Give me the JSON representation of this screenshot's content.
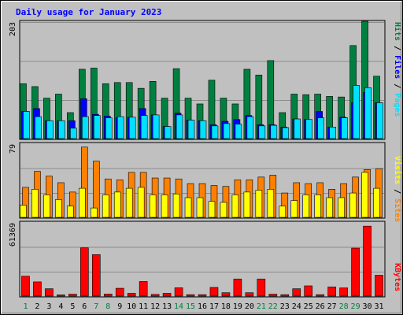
{
  "chart_data": [
    {
      "type": "bar",
      "title": "Daily usage for January 2023",
      "categories": [
        "1",
        "2",
        "3",
        "4",
        "5",
        "6",
        "7",
        "8",
        "9",
        "10",
        "11",
        "12",
        "13",
        "14",
        "15",
        "16",
        "17",
        "18",
        "19",
        "20",
        "21",
        "22",
        "23",
        "24",
        "25",
        "26",
        "27",
        "28",
        "29",
        "30",
        "31"
      ],
      "weekend_days": [
        "1",
        "7",
        "8",
        "14",
        "15",
        "21",
        "22",
        "28",
        "29"
      ],
      "ymax_label": "203",
      "ylim": [
        0,
        203
      ],
      "series": [
        {
          "name": "Hits",
          "color": "#008040",
          "values": [
            95,
            90,
            70,
            77,
            45,
            120,
            122,
            95,
            97,
            97,
            87,
            99,
            70,
            121,
            70,
            60,
            101,
            70,
            60,
            120,
            110,
            135,
            45,
            77,
            76,
            77,
            73,
            72,
            161,
            203,
            108
          ]
        },
        {
          "name": "Files",
          "color": "#0000ff",
          "values": [
            47,
            52,
            31,
            31,
            31,
            69,
            42,
            39,
            36,
            37,
            52,
            41,
            21,
            44,
            32,
            31,
            24,
            30,
            33,
            40,
            24,
            24,
            20,
            34,
            33,
            47,
            20,
            37,
            62,
            80,
            62
          ]
        },
        {
          "name": "Pages",
          "color": "#00e0ff",
          "values": [
            47,
            38,
            31,
            31,
            18,
            38,
            40,
            36,
            38,
            37,
            40,
            41,
            21,
            41,
            32,
            31,
            22,
            26,
            25,
            38,
            22,
            23,
            19,
            34,
            33,
            36,
            20,
            36,
            92,
            88,
            62
          ]
        }
      ]
    },
    {
      "type": "bar",
      "ymax_label": "79",
      "ylim": [
        0,
        79
      ],
      "series": [
        {
          "name": "Visits",
          "color": "#ffff00",
          "values": [
            13,
            30,
            24,
            19,
            12,
            31,
            10,
            24,
            27,
            31,
            32,
            24,
            24,
            25,
            21,
            21,
            17,
            16,
            24,
            27,
            29,
            30,
            12,
            18,
            24,
            24,
            21,
            21,
            26,
            48,
            31
          ]
        },
        {
          "name": "Sites",
          "color": "#ff8000",
          "values": [
            32,
            49,
            44,
            37,
            27,
            75,
            60,
            41,
            40,
            48,
            48,
            42,
            42,
            41,
            36,
            36,
            34,
            33,
            40,
            40,
            43,
            45,
            26,
            37,
            36,
            37,
            30,
            36,
            43,
            51,
            52
          ]
        }
      ]
    },
    {
      "type": "bar",
      "ymax_label": "61369",
      "ylim": [
        0,
        61369
      ],
      "series": [
        {
          "name": "KBytes",
          "color": "#ff0000",
          "values": [
            16500,
            11800,
            6100,
            1000,
            1600,
            40000,
            34400,
            1700,
            6500,
            2300,
            12100,
            1400,
            2300,
            6900,
            1200,
            1200,
            7200,
            2800,
            14200,
            2800,
            14200,
            1600,
            1200,
            6100,
            8500,
            1200,
            7600,
            6800,
            39800,
            58000,
            17300
          ]
        }
      ]
    }
  ]
}
